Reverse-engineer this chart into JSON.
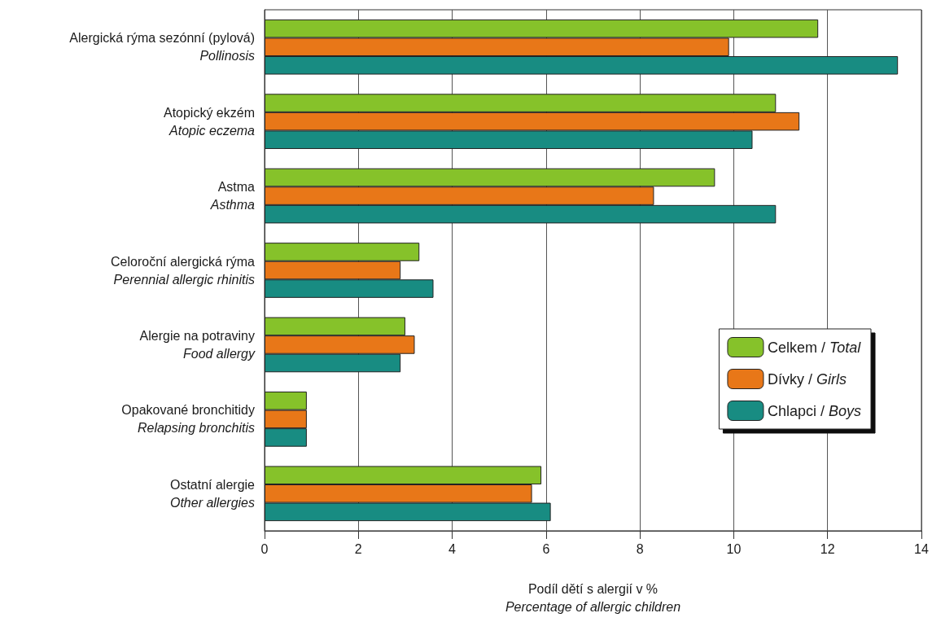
{
  "chart_data": {
    "type": "bar",
    "orientation": "horizontal",
    "categories": [
      "Alergická rýma sezónní (pylová)\nPollinosis",
      "Atopický ekzém\nAtopic eczema",
      "Astma\nAsthma",
      "Celoroční alergická rýma\nPerennial allergic rhinitis",
      "Alergie na potraviny\nFood allergy",
      "Opakované bronchitidy\nRelapsing bronchitis",
      "Ostatní alergie\nOther allergies"
    ],
    "series": [
      {
        "name": "Celkem / Total",
        "color": "#86c22a",
        "values": [
          11.8,
          10.9,
          9.6,
          3.3,
          3.0,
          0.9,
          5.9
        ]
      },
      {
        "name": "Dívky / Girls",
        "color": "#e87718",
        "values": [
          9.9,
          11.4,
          8.3,
          2.9,
          3.2,
          0.9,
          5.7
        ]
      },
      {
        "name": "Chlapci / Boys",
        "color": "#188c82",
        "values": [
          13.5,
          10.4,
          10.9,
          3.6,
          2.9,
          0.9,
          6.1
        ]
      }
    ],
    "xlabel": "Podíl dětí s alergií v %\nPercentage of allergic children",
    "xlim": [
      0,
      14
    ],
    "xticks": [
      0,
      2,
      4,
      6,
      8,
      10,
      12,
      14
    ],
    "grid": "x",
    "legend": "right"
  }
}
